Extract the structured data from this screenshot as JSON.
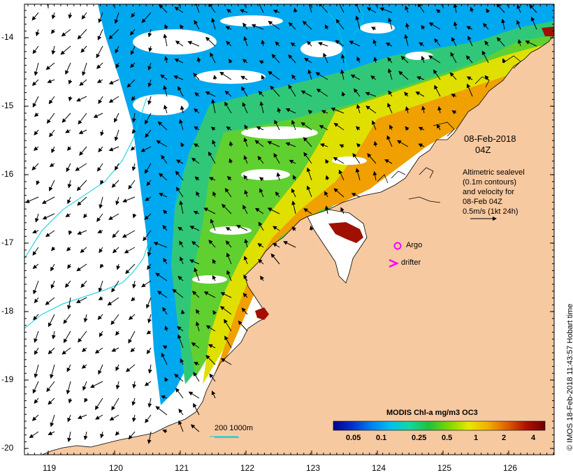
{
  "map": {
    "lon_range": [
      118.65,
      126.7
    ],
    "lat_range": [
      -20.1,
      -13.5
    ],
    "colors": {
      "land": "#f7c9a0",
      "cloud": "#ffffff",
      "coastline": "#000000",
      "contour": "#00d0e0",
      "frame": "#000000"
    }
  },
  "axes": {
    "y_ticks": [
      "-14",
      "-15",
      "-16",
      "-17",
      "-18",
      "-19",
      "-20"
    ],
    "x_ticks": [
      "119",
      "120",
      "121",
      "122",
      "123",
      "124",
      "125",
      "126"
    ]
  },
  "annotations": {
    "date": "08-Feb-2018",
    "time": "04Z",
    "legend_lines": [
      "Altimetric sealevel",
      "(0.1m contours)",
      "and velocity for",
      "08-Feb 04Z",
      "0.5m/s (1kt 24h)"
    ],
    "argo_label": "Argo",
    "drifter_label": "drifter",
    "scale_bar_label": "200  1000m"
  },
  "colorbar": {
    "title": "MODIS Chl-a mg/m3 OC3",
    "tick_labels": [
      "0.05",
      "0.1",
      "0.25",
      "0.5",
      "1",
      "2",
      "4"
    ],
    "colormap": [
      "#08008a",
      "#0030d0",
      "#0080f0",
      "#00c0f0",
      "#10d8a0",
      "#20c040",
      "#80d800",
      "#e8e800",
      "#f0b000",
      "#e06000",
      "#b01000",
      "#700000"
    ]
  },
  "credit": "© IMOS 18-Feb-2018 11:43:57 Hobart time"
}
